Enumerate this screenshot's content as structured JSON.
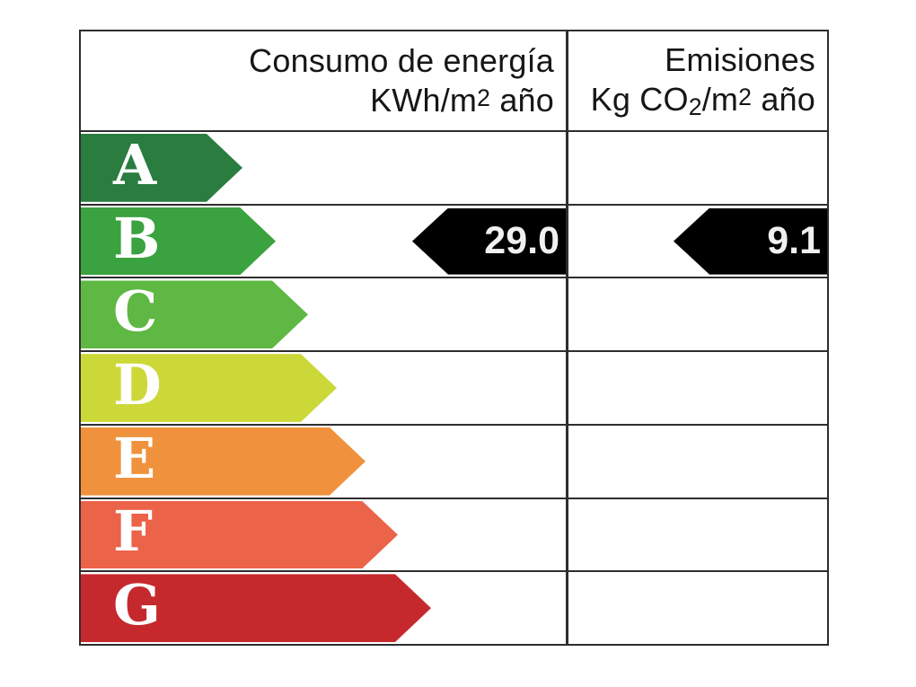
{
  "header": {
    "consumption": {
      "title": "Consumo de energía",
      "unit_prefix": "KWh/m",
      "unit_exponent": "2",
      "unit_suffix": " año"
    },
    "emissions": {
      "title": "Emisiones",
      "unit_prefix": "Kg CO",
      "unit_subscript": "2",
      "unit_mid": "/m",
      "unit_exponent": "2",
      "unit_suffix": " año"
    }
  },
  "ratings": [
    {
      "letter": "A",
      "color": "#2a7c3f"
    },
    {
      "letter": "B",
      "color": "#3aa23e"
    },
    {
      "letter": "C",
      "color": "#5eb843"
    },
    {
      "letter": "D",
      "color": "#ccd838"
    },
    {
      "letter": "E",
      "color": "#f0923d"
    },
    {
      "letter": "F",
      "color": "#eb6349"
    },
    {
      "letter": "G",
      "color": "#c5292d"
    }
  ],
  "values": {
    "rated_letter": "B",
    "consumption": "29.0",
    "emissions": "9.1",
    "arrow_color": "#000000",
    "text_color": "#f0f0f0"
  },
  "grid_color": "#2e2e2e",
  "chart_data": {
    "type": "table",
    "columns": [
      "Consumo de energía KWh/m2 año",
      "Emisiones Kg CO2/m2 año"
    ],
    "categories": [
      "A",
      "B",
      "C",
      "D",
      "E",
      "F",
      "G"
    ],
    "highlighted_category": "B",
    "values": {
      "consumo_kwh_m2_ano": 29.0,
      "emisiones_kg_co2_m2_ano": 9.1
    },
    "category_colors": [
      "#2a7c3f",
      "#3aa23e",
      "#5eb843",
      "#ccd838",
      "#f0923d",
      "#eb6349",
      "#c5292d"
    ]
  }
}
